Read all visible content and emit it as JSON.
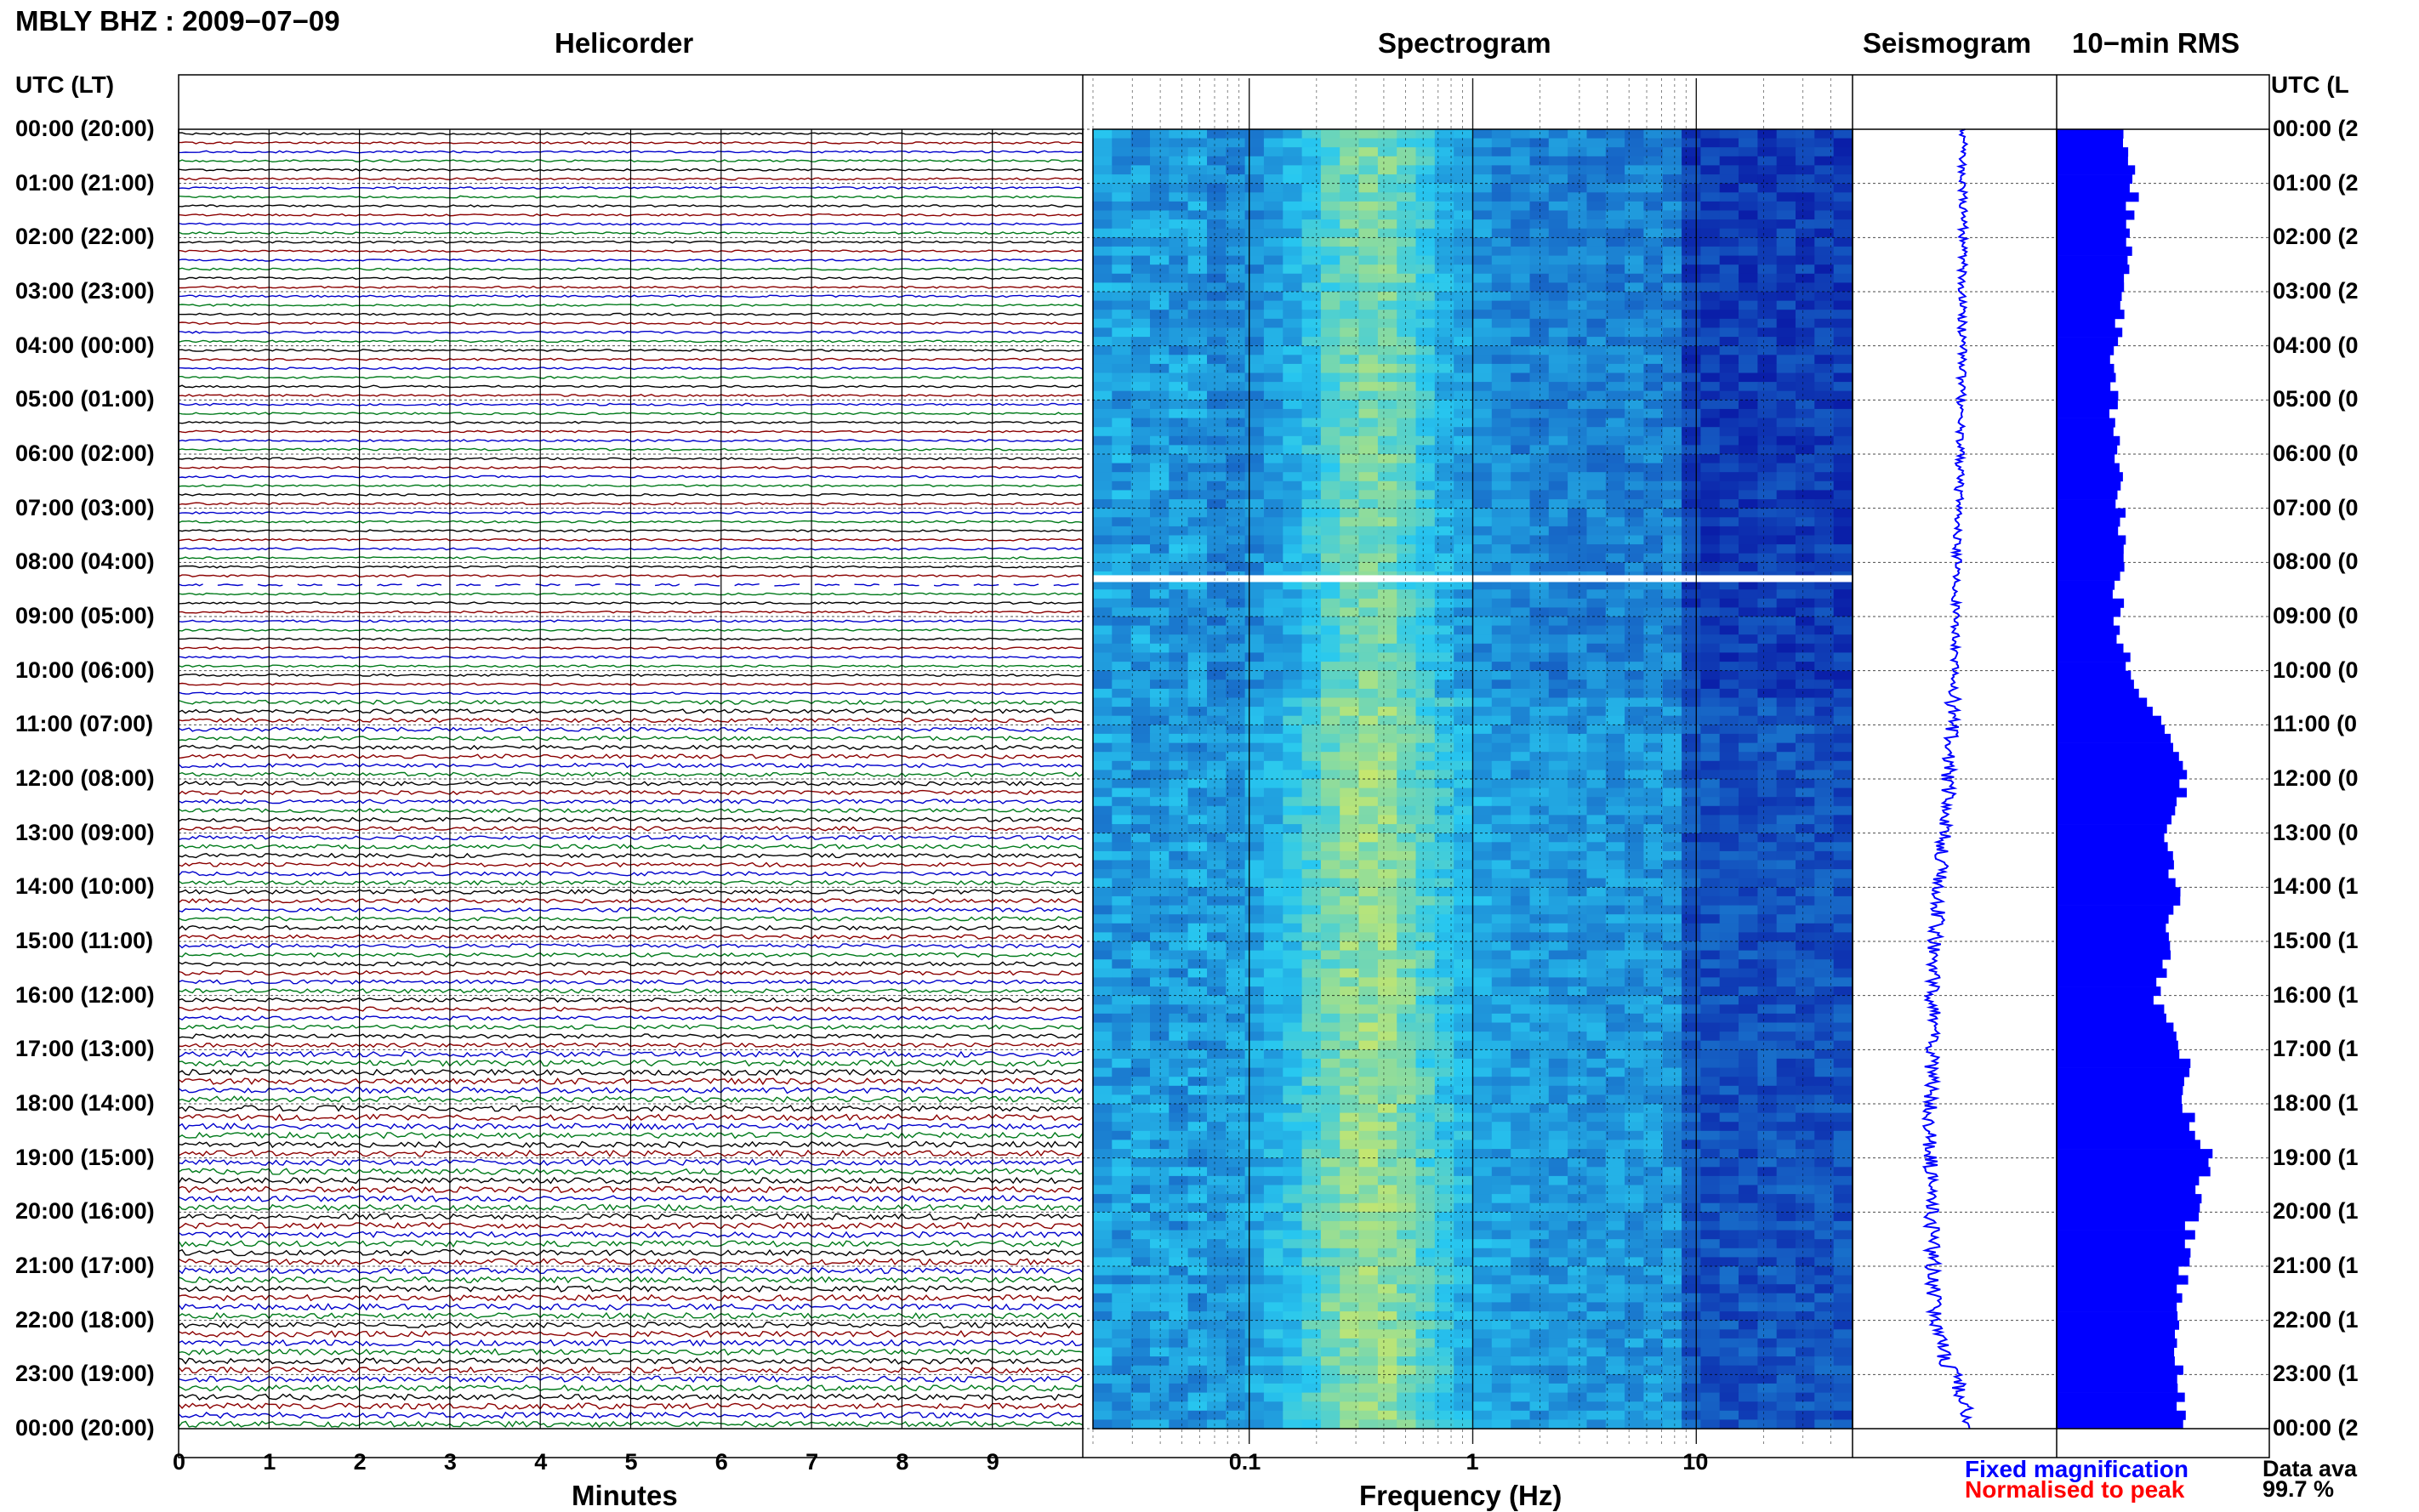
{
  "header": {
    "title": "MBLY BHZ : 2009−07−09",
    "panel_titles": {
      "helicorder": "Helicorder",
      "spectrogram": "Spectrogram",
      "seismogram": "Seismogram",
      "rms": "10−min RMS"
    },
    "left_axis_title": "UTC (LT)",
    "right_axis_title": "UTC (L"
  },
  "footer": {
    "minutes_label": "Minutes",
    "frequency_label": "Frequency (Hz)",
    "legend_fixed": "Fixed magnification",
    "legend_normalised": "Normalised to peak",
    "availability_label": "Data ava",
    "availability_value": "99.7 %"
  },
  "colors": {
    "trace_cycle": [
      "#000000",
      "#8b0000",
      "#0000cc",
      "#007a1a"
    ],
    "seismogram": "#0000ff",
    "rms_bars": "#0000ff",
    "legend_fixed": "#0000ff",
    "legend_normalised": "#ff0000",
    "spectrogram_low": "#0a1ea8",
    "spectrogram_high": "#cbe86a"
  },
  "chart_data": [
    {
      "type": "line",
      "name": "helicorder",
      "xlabel": "Minutes",
      "xlim": [
        0,
        10
      ],
      "x_ticks": [
        "0",
        "1",
        "2",
        "3",
        "4",
        "5",
        "6",
        "7",
        "8",
        "9"
      ],
      "time_labels_left": [
        "00:00 (20:00)",
        "01:00 (21:00)",
        "02:00 (22:00)",
        "03:00 (23:00)",
        "04:00 (00:00)",
        "05:00 (01:00)",
        "06:00 (02:00)",
        "07:00 (03:00)",
        "08:00 (04:00)",
        "09:00 (05:00)",
        "10:00 (06:00)",
        "11:00 (07:00)",
        "12:00 (08:00)",
        "13:00 (09:00)",
        "14:00 (10:00)",
        "15:00 (11:00)",
        "16:00 (12:00)",
        "17:00 (13:00)",
        "18:00 (14:00)",
        "19:00 (15:00)",
        "20:00 (16:00)",
        "21:00 (17:00)",
        "22:00 (18:00)",
        "23:00 (19:00)",
        "00:00 (20:00)"
      ],
      "time_labels_right": [
        "00:00 (2",
        "01:00 (2",
        "02:00 (2",
        "03:00 (2",
        "04:00 (0",
        "05:00 (0",
        "06:00 (0",
        "07:00 (0",
        "08:00 (0",
        "09:00 (0",
        "10:00 (0",
        "11:00 (0",
        "12:00 (0",
        "13:00 (0",
        "14:00 (1",
        "15:00 (1",
        "16:00 (1",
        "17:00 (1",
        "18:00 (1",
        "19:00 (1",
        "20:00 (1",
        "21:00 (1",
        "22:00 (1",
        "23:00 (1",
        "00:00 (2"
      ],
      "rows": 144,
      "minutes_per_row": 10,
      "gap_hour_utc": 8.3
    },
    {
      "type": "heatmap",
      "name": "spectrogram",
      "xlabel": "Frequency (Hz)",
      "x_scale": "log",
      "xlim": [
        0.02,
        50
      ],
      "x_ticks": [
        0.1,
        1,
        10
      ],
      "x_tick_labels": [
        "0.1",
        "1",
        "10"
      ],
      "peak_frequency_hz": 0.35,
      "gap_hour_utc": 8.3
    },
    {
      "type": "line",
      "name": "seismogram",
      "hours": [
        0,
        2,
        4,
        6,
        8,
        10,
        11,
        12,
        13,
        14,
        15,
        16,
        17,
        18,
        19,
        20,
        21,
        22,
        22.7,
        23,
        23.5,
        24
      ],
      "offset": [
        0.0,
        0.0,
        -0.01,
        -0.04,
        -0.08,
        -0.12,
        -0.15,
        -0.19,
        -0.24,
        -0.3,
        -0.36,
        -0.39,
        -0.41,
        -0.42,
        -0.43,
        -0.42,
        -0.4,
        -0.36,
        -0.25,
        -0.12,
        0.02,
        0.06
      ]
    },
    {
      "type": "bar",
      "name": "10-min RMS",
      "hours": [
        0,
        1,
        2,
        3,
        4,
        5,
        6,
        7,
        8,
        9,
        10,
        11,
        12,
        13,
        14,
        15,
        16,
        17,
        18,
        19,
        20,
        21,
        22,
        23
      ],
      "values": [
        0.32,
        0.36,
        0.34,
        0.3,
        0.27,
        0.26,
        0.28,
        0.3,
        0.3,
        0.28,
        0.34,
        0.52,
        0.6,
        0.5,
        0.58,
        0.52,
        0.48,
        0.6,
        0.62,
        0.72,
        0.64,
        0.6,
        0.56,
        0.58
      ]
    }
  ]
}
